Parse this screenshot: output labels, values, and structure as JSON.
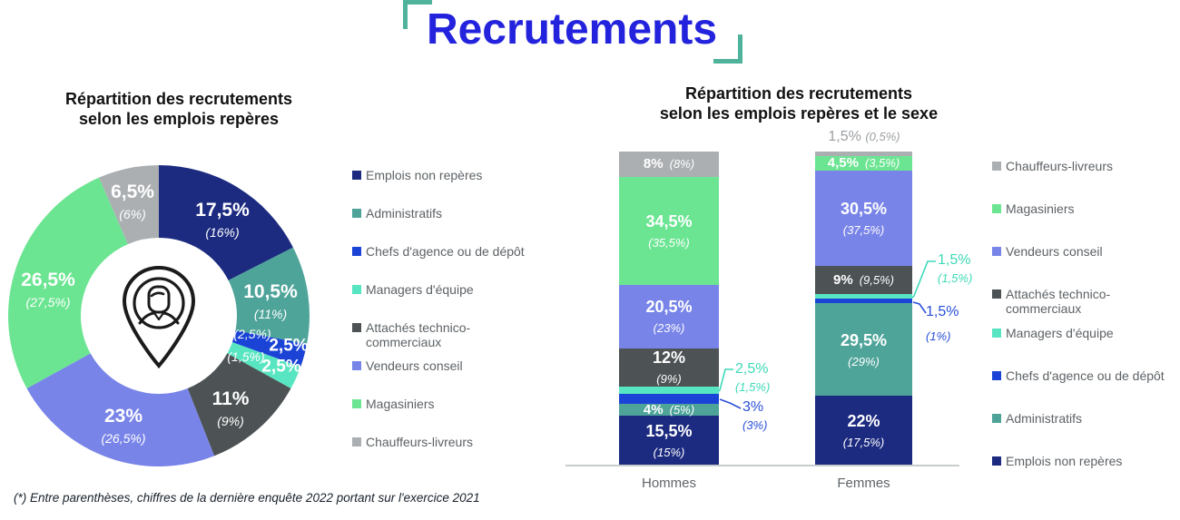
{
  "header": {
    "title": "Recrutements"
  },
  "footnote": "(*) Entre parenthèses, chiffres de la dernière enquête 2022 portant sur l'exercice 2021",
  "colors": {
    "series": [
      "#1c2b80",
      "#4fa49a",
      "#1b44d6",
      "#58e5c1",
      "#4d5355",
      "#7884e8",
      "#6ce592",
      "#abafb2"
    ],
    "title_blue": "#2323dd",
    "bracket_teal": "#4fb39c",
    "callout_mint": "#3ed9b8",
    "callout_blue": "#2a4fd8",
    "above_bar_gray": "#9b9fa2",
    "axis_gray": "#c9cccd",
    "legend_text": "#5d6266"
  },
  "chart_data": [
    {
      "type": "pie",
      "subtype": "donut",
      "title_lines": [
        "Répartition des recrutements",
        "selon les emplois repères"
      ],
      "categories": [
        "Emplois non repères",
        "Administratifs",
        "Chefs d'agence ou de dépôt",
        "Managers d'équipe",
        "Attachés technico-commerciaux",
        "Vendeurs conseil",
        "Magasiniers",
        "Chauffeurs-livreurs"
      ],
      "values": [
        17.5,
        10.5,
        2.5,
        2.5,
        11,
        23,
        26.5,
        6.5
      ],
      "prev_year_values": [
        16,
        11,
        2.5,
        1.5,
        9,
        26.5,
        27.5,
        6
      ],
      "labels": [
        "17,5%",
        "10,5%",
        "2,5%",
        "2,5%",
        "11%",
        "23%",
        "26,5%",
        "6,5%"
      ],
      "prev_labels": [
        "(16%)",
        "(11%)",
        "(2,5%)",
        "(1,5%)",
        "(9%)",
        "(26,5%)",
        "(27,5%)",
        "(6%)"
      ],
      "center_icon": "person-location-pin-icon",
      "legend_position": "right"
    },
    {
      "type": "bar",
      "subtype": "stacked-100",
      "title_lines": [
        "Répartition des recrutements",
        "selon les emplois repères et le sexe"
      ],
      "categories": [
        "Hommes",
        "Femmes"
      ],
      "ylim": [
        0,
        100
      ],
      "legend_position": "right",
      "series": [
        {
          "name": "Emplois non repères",
          "values": [
            15.5,
            22
          ],
          "prev_values": [
            15,
            17.5
          ]
        },
        {
          "name": "Administratifs",
          "values": [
            4,
            29.5
          ],
          "prev_values": [
            5,
            29
          ]
        },
        {
          "name": "Chefs d'agence ou de dépôt",
          "values": [
            3,
            1.5
          ],
          "prev_values": [
            3,
            1
          ]
        },
        {
          "name": "Managers d'équipe",
          "values": [
            2.5,
            1.5
          ],
          "prev_values": [
            1.5,
            1.5
          ]
        },
        {
          "name": "Attachés technico-commerciaux",
          "values": [
            12,
            9
          ],
          "prev_values": [
            9,
            9.5
          ]
        },
        {
          "name": "Vendeurs conseil",
          "values": [
            20.5,
            30.5
          ],
          "prev_values": [
            23,
            37.5
          ]
        },
        {
          "name": "Magasiniers",
          "values": [
            34.5,
            4.5
          ],
          "prev_values": [
            35.5,
            3.5
          ]
        },
        {
          "name": "Chauffeurs-livreurs",
          "values": [
            8,
            1.5
          ],
          "prev_values": [
            8,
            0.5
          ]
        }
      ],
      "callouts": [
        {
          "category": "Hommes",
          "series": "Managers d'équipe",
          "value": "2,5%",
          "prev": "(1,5%)"
        },
        {
          "category": "Hommes",
          "series": "Chefs d'agence ou de dépôt",
          "value": "3%",
          "prev": "(3%)"
        },
        {
          "category": "Femmes",
          "series": "Managers d'équipe",
          "value": "1,5%",
          "prev": "(1,5%)"
        },
        {
          "category": "Femmes",
          "series": "Chefs d'agence ou de dépôt",
          "value": "1,5%",
          "prev": "(1%)"
        },
        {
          "category": "Femmes",
          "series": "Chauffeurs-livreurs",
          "value": "1,5%",
          "prev": "(0,5%)",
          "position": "above-bar"
        }
      ]
    }
  ],
  "legends": {
    "left": {
      "order": [
        0,
        1,
        2,
        3,
        4,
        5,
        6,
        7
      ]
    },
    "right": {
      "order": [
        7,
        6,
        5,
        4,
        3,
        2,
        1,
        0
      ]
    }
  }
}
